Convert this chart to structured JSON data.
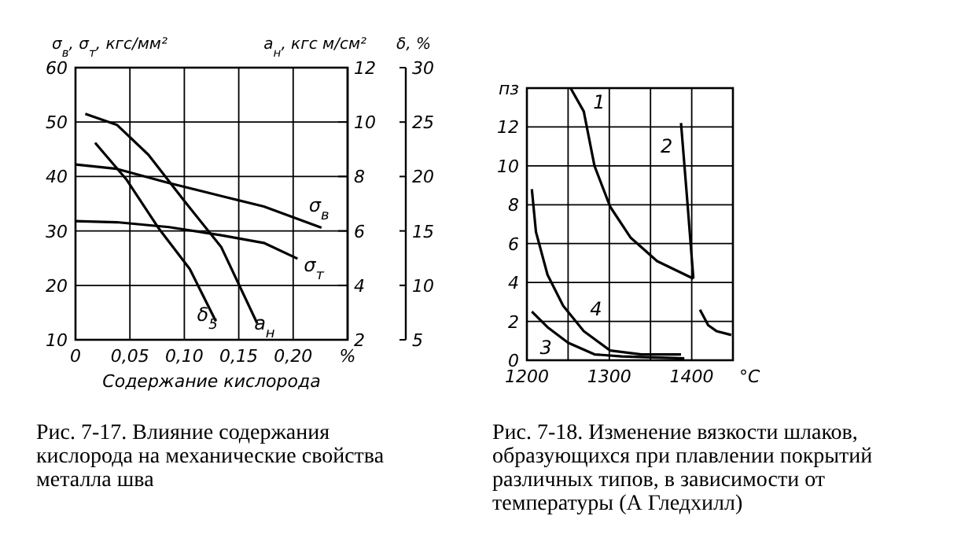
{
  "chart_data": [
    {
      "type": "line",
      "title": "Рис. 7-17. Влияние содержания кислорода на механические свойства металла шва",
      "xlabel": "Содержание кислорода",
      "ylabel": "σ$_{в}$, σ$_{т}$, кгс/мм²",
      "y2label": "a$_{н}$, кгс м/см²",
      "y3label": "δ, %",
      "xlim": [
        0,
        0.25
      ],
      "xticks": [
        0,
        {
          "value": 0.05,
          "label": "0,05"
        },
        {
          "value": 0.1,
          "label": "0,10"
        },
        {
          "value": 0.15,
          "label": "0,15"
        },
        {
          "value": 0.2,
          "label": "0,20"
        },
        {
          "value": 0.25,
          "label": "%"
        }
      ],
      "ylim": [
        10,
        60
      ],
      "yticks": [
        10,
        20,
        30,
        40,
        50,
        60
      ],
      "y2lim": [
        2,
        12
      ],
      "y2ticks": [
        2,
        4,
        6,
        8,
        10,
        12
      ],
      "y3lim": [
        5,
        30
      ],
      "y3ticks": [
        5,
        10,
        15,
        20,
        25,
        30
      ],
      "grid": true,
      "line_style": "solid",
      "marker": "none",
      "series": [
        {
          "name": "σ$_{в}$",
          "color": "#000000",
          "x": [
            0,
            0.038,
            0.086,
            0.134,
            0.173,
            0.226
          ],
          "values": [
            42.2,
            41.4,
            38.8,
            36.4,
            34.5,
            30.6
          ]
        },
        {
          "name": "σ$_{т}$",
          "color": "#000000",
          "x": [
            0,
            0.038,
            0.086,
            0.134,
            0.173,
            0.204
          ],
          "values": [
            31.8,
            31.6,
            30.7,
            29.2,
            27.8,
            24.9
          ]
        },
        {
          "name": "a$_{н}$",
          "color": "#000000",
          "axis": "y2",
          "x": [
            0.009,
            0.038,
            0.067,
            0.1,
            0.134,
            0.167
          ],
          "values": [
            10.3,
            9.9,
            8.8,
            7.1,
            5.4,
            2.6
          ]
        },
        {
          "name": "δ$_{5}$",
          "color": "#000000",
          "axis": "y3",
          "x": [
            0.018,
            0.047,
            0.076,
            0.105,
            0.129
          ],
          "values": [
            23.1,
            19.7,
            15.3,
            11.5,
            6.7
          ]
        }
      ]
    },
    {
      "type": "line",
      "title": "Рис. 7-18. Изменение вязкости шлаков, образующихся при плавлении покрытий различных типов, в зависимости от температуры (А Гледхилл)",
      "xlabel": "°C",
      "ylabel": "пз",
      "xlim": [
        1200,
        1450
      ],
      "xticks": [
        1200,
        {
          "value": 1250,
          "label": null
        },
        1300,
        {
          "value": 1350,
          "label": null
        },
        1400
      ],
      "ylim": [
        0,
        14
      ],
      "yticks": [
        0,
        2,
        4,
        6,
        8,
        10,
        12
      ],
      "grid": true,
      "line_style": "solid",
      "marker": "none",
      "series": [
        {
          "name": "1",
          "color": "#000000",
          "x": [
            1253,
            1269,
            1282,
            1301,
            1326,
            1358,
            1402
          ],
          "values": [
            14,
            12.8,
            10,
            7.9,
            6.3,
            5.1,
            4.2
          ]
        },
        {
          "name": "2",
          "color": "#000000",
          "x": [
            1387,
            1395,
            1402
          ],
          "values": [
            12.2,
            8,
            4.2
          ]
        },
        {
          "color": "#000000",
          "x": [
            1410,
            1420,
            1430,
            1448
          ],
          "values": [
            2.6,
            1.8,
            1.5,
            1.3
          ]
        },
        {
          "name": "3",
          "color": "#000000",
          "x": [
            1206,
            1225,
            1250,
            1282,
            1315,
            1391
          ],
          "values": [
            2.5,
            1.7,
            0.9,
            0.3,
            0.2,
            0.1
          ]
        },
        {
          "name": "4",
          "color": "#000000",
          "x": [
            1206,
            1211,
            1225,
            1244,
            1269,
            1301,
            1339,
            1387
          ],
          "values": [
            8.8,
            6.6,
            4.4,
            2.8,
            1.5,
            0.5,
            0.3,
            0.3
          ]
        }
      ]
    }
  ]
}
